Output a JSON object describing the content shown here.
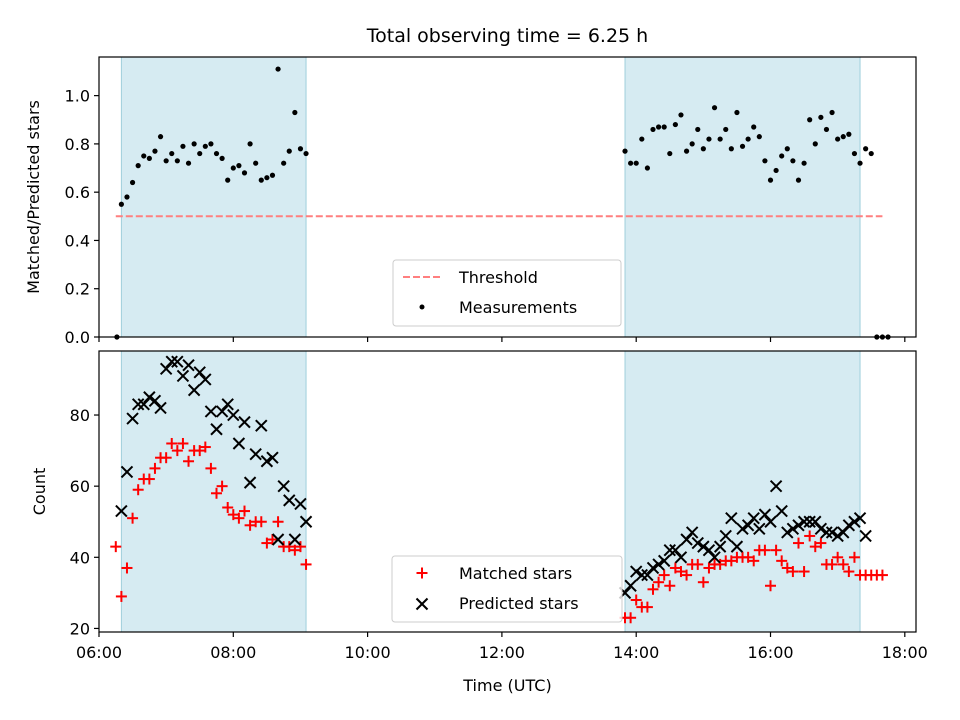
{
  "chart_data": [
    {
      "type": "scatter",
      "title": "Total observing time = 6.25 h",
      "xlabel": "",
      "ylabel": "Matched/Predicted stars",
      "ylim": [
        0,
        1.16
      ],
      "yticks": [
        "0.0",
        "0.2",
        "0.4",
        "0.6",
        "0.8",
        "1.0"
      ],
      "legend_position": "lower-center",
      "shaded_intervals": [
        [
          "06:20",
          "09:05"
        ],
        [
          "13:50",
          "17:20"
        ]
      ],
      "threshold": {
        "name": "Threshold",
        "value": 0.5,
        "x_range": [
          "06:15",
          "17:40"
        ],
        "color": "#ff7f7f"
      },
      "series": [
        {
          "name": "Measurements",
          "color": "#000000",
          "marker": "dot",
          "points": [
            [
              "06:16",
              0.0
            ],
            [
              "06:20",
              0.55
            ],
            [
              "06:25",
              0.58
            ],
            [
              "06:30",
              0.64
            ],
            [
              "06:35",
              0.71
            ],
            [
              "06:40",
              0.75
            ],
            [
              "06:45",
              0.74
            ],
            [
              "06:50",
              0.77
            ],
            [
              "06:55",
              0.83
            ],
            [
              "07:00",
              0.73
            ],
            [
              "07:05",
              0.76
            ],
            [
              "07:10",
              0.73
            ],
            [
              "07:15",
              0.79
            ],
            [
              "07:20",
              0.72
            ],
            [
              "07:25",
              0.8
            ],
            [
              "07:30",
              0.76
            ],
            [
              "07:35",
              0.79
            ],
            [
              "07:40",
              0.8
            ],
            [
              "07:45",
              0.76
            ],
            [
              "07:50",
              0.74
            ],
            [
              "07:55",
              0.65
            ],
            [
              "08:00",
              0.7
            ],
            [
              "08:05",
              0.71
            ],
            [
              "08:10",
              0.68
            ],
            [
              "08:15",
              0.8
            ],
            [
              "08:20",
              0.72
            ],
            [
              "08:25",
              0.65
            ],
            [
              "08:30",
              0.66
            ],
            [
              "08:35",
              0.67
            ],
            [
              "08:40",
              1.11
            ],
            [
              "08:45",
              0.72
            ],
            [
              "08:50",
              0.77
            ],
            [
              "08:55",
              0.93
            ],
            [
              "09:00",
              0.78
            ],
            [
              "09:05",
              0.76
            ],
            [
              "13:50",
              0.77
            ],
            [
              "13:55",
              0.72
            ],
            [
              "14:00",
              0.72
            ],
            [
              "14:05",
              0.82
            ],
            [
              "14:10",
              0.7
            ],
            [
              "14:15",
              0.86
            ],
            [
              "14:20",
              0.87
            ],
            [
              "14:25",
              0.87
            ],
            [
              "14:30",
              0.76
            ],
            [
              "14:35",
              0.88
            ],
            [
              "14:40",
              0.92
            ],
            [
              "14:45",
              0.77
            ],
            [
              "14:50",
              0.8
            ],
            [
              "14:55",
              0.86
            ],
            [
              "15:00",
              0.78
            ],
            [
              "15:05",
              0.82
            ],
            [
              "15:10",
              0.95
            ],
            [
              "15:15",
              0.82
            ],
            [
              "15:20",
              0.86
            ],
            [
              "15:25",
              0.78
            ],
            [
              "15:30",
              0.93
            ],
            [
              "15:35",
              0.79
            ],
            [
              "15:40",
              0.82
            ],
            [
              "15:45",
              0.87
            ],
            [
              "15:50",
              0.83
            ],
            [
              "15:55",
              0.73
            ],
            [
              "16:00",
              0.65
            ],
            [
              "16:05",
              0.69
            ],
            [
              "16:10",
              0.75
            ],
            [
              "16:15",
              0.78
            ],
            [
              "16:20",
              0.73
            ],
            [
              "16:25",
              0.65
            ],
            [
              "16:30",
              0.72
            ],
            [
              "16:35",
              0.9
            ],
            [
              "16:40",
              0.8
            ],
            [
              "16:45",
              0.91
            ],
            [
              "16:50",
              0.86
            ],
            [
              "16:55",
              0.93
            ],
            [
              "17:00",
              0.82
            ],
            [
              "17:05",
              0.83
            ],
            [
              "17:10",
              0.84
            ],
            [
              "17:15",
              0.76
            ],
            [
              "17:20",
              0.72
            ],
            [
              "17:25",
              0.78
            ],
            [
              "17:30",
              0.76
            ],
            [
              "17:35",
              0.0
            ],
            [
              "17:40",
              0.0
            ],
            [
              "17:45",
              0.0
            ]
          ]
        }
      ]
    },
    {
      "type": "scatter",
      "title": "",
      "xlabel": "Time (UTC)",
      "ylabel": "Count",
      "ylim": [
        19,
        98
      ],
      "yticks": [
        "20",
        "40",
        "60",
        "80"
      ],
      "xlim": [
        "06:00",
        "18:10"
      ],
      "xticks": [
        "06:00",
        "08:00",
        "10:00",
        "12:00",
        "14:00",
        "16:00",
        "18:00"
      ],
      "legend_position": "lower-center",
      "shaded_intervals": [
        [
          "06:20",
          "09:05"
        ],
        [
          "13:50",
          "17:20"
        ]
      ],
      "series": [
        {
          "name": "Matched stars",
          "color": "#ff0000",
          "marker": "plus",
          "points": [
            [
              "06:15",
              43
            ],
            [
              "06:20",
              29
            ],
            [
              "06:25",
              37
            ],
            [
              "06:30",
              51
            ],
            [
              "06:35",
              59
            ],
            [
              "06:40",
              62
            ],
            [
              "06:45",
              62
            ],
            [
              "06:50",
              65
            ],
            [
              "06:55",
              68
            ],
            [
              "07:00",
              68
            ],
            [
              "07:05",
              72
            ],
            [
              "07:10",
              70
            ],
            [
              "07:15",
              72
            ],
            [
              "07:20",
              67
            ],
            [
              "07:25",
              70
            ],
            [
              "07:30",
              70
            ],
            [
              "07:35",
              71
            ],
            [
              "07:40",
              65
            ],
            [
              "07:45",
              58
            ],
            [
              "07:50",
              60
            ],
            [
              "07:55",
              54
            ],
            [
              "08:00",
              52
            ],
            [
              "08:05",
              51
            ],
            [
              "08:10",
              53
            ],
            [
              "08:15",
              49
            ],
            [
              "08:20",
              50
            ],
            [
              "08:25",
              50
            ],
            [
              "08:30",
              44
            ],
            [
              "08:35",
              45
            ],
            [
              "08:40",
              50
            ],
            [
              "08:45",
              43
            ],
            [
              "08:50",
              43
            ],
            [
              "08:55",
              42
            ],
            [
              "09:00",
              43
            ],
            [
              "09:05",
              38
            ],
            [
              "13:50",
              23
            ],
            [
              "13:55",
              23
            ],
            [
              "14:00",
              28
            ],
            [
              "14:05",
              26
            ],
            [
              "14:10",
              26
            ],
            [
              "14:15",
              31
            ],
            [
              "14:20",
              33
            ],
            [
              "14:25",
              35
            ],
            [
              "14:30",
              32
            ],
            [
              "14:35",
              37
            ],
            [
              "14:40",
              36
            ],
            [
              "14:45",
              35
            ],
            [
              "14:50",
              38
            ],
            [
              "14:55",
              38
            ],
            [
              "15:00",
              33
            ],
            [
              "15:05",
              37
            ],
            [
              "15:10",
              38
            ],
            [
              "15:15",
              38
            ],
            [
              "15:20",
              39
            ],
            [
              "15:25",
              39
            ],
            [
              "15:30",
              40
            ],
            [
              "15:35",
              40
            ],
            [
              "15:40",
              40
            ],
            [
              "15:45",
              39
            ],
            [
              "15:50",
              42
            ],
            [
              "15:55",
              42
            ],
            [
              "16:00",
              32
            ],
            [
              "16:05",
              42
            ],
            [
              "16:10",
              39
            ],
            [
              "16:15",
              37
            ],
            [
              "16:20",
              36
            ],
            [
              "16:25",
              44
            ],
            [
              "16:30",
              36
            ],
            [
              "16:35",
              46
            ],
            [
              "16:40",
              43
            ],
            [
              "16:45",
              44
            ],
            [
              "16:50",
              38
            ],
            [
              "16:55",
              38
            ],
            [
              "17:00",
              40
            ],
            [
              "17:05",
              38
            ],
            [
              "17:10",
              36
            ],
            [
              "17:15",
              40
            ],
            [
              "17:20",
              35
            ],
            [
              "17:25",
              35
            ],
            [
              "17:30",
              35
            ],
            [
              "17:35",
              35
            ],
            [
              "17:40",
              35
            ]
          ]
        },
        {
          "name": "Predicted stars",
          "color": "#000000",
          "marker": "x",
          "points": [
            [
              "06:20",
              53
            ],
            [
              "06:25",
              64
            ],
            [
              "06:30",
              79
            ],
            [
              "06:35",
              83
            ],
            [
              "06:40",
              83
            ],
            [
              "06:45",
              85
            ],
            [
              "06:50",
              84
            ],
            [
              "06:55",
              82
            ],
            [
              "07:00",
              93
            ],
            [
              "07:05",
              95
            ],
            [
              "07:10",
              95
            ],
            [
              "07:15",
              91
            ],
            [
              "07:20",
              94
            ],
            [
              "07:25",
              87
            ],
            [
              "07:30",
              92
            ],
            [
              "07:35",
              90
            ],
            [
              "07:40",
              81
            ],
            [
              "07:45",
              76
            ],
            [
              "07:50",
              81
            ],
            [
              "07:55",
              83
            ],
            [
              "08:00",
              80
            ],
            [
              "08:05",
              72
            ],
            [
              "08:10",
              78
            ],
            [
              "08:15",
              61
            ],
            [
              "08:20",
              69
            ],
            [
              "08:25",
              77
            ],
            [
              "08:30",
              67
            ],
            [
              "08:35",
              68
            ],
            [
              "08:40",
              45
            ],
            [
              "08:45",
              60
            ],
            [
              "08:50",
              56
            ],
            [
              "08:55",
              45
            ],
            [
              "09:00",
              55
            ],
            [
              "09:05",
              50
            ],
            [
              "13:50",
              30
            ],
            [
              "13:55",
              32
            ],
            [
              "14:00",
              36
            ],
            [
              "14:05",
              35
            ],
            [
              "14:10",
              35
            ],
            [
              "14:15",
              37
            ],
            [
              "14:20",
              38
            ],
            [
              "14:25",
              39
            ],
            [
              "14:30",
              42
            ],
            [
              "14:35",
              42
            ],
            [
              "14:40",
              40
            ],
            [
              "14:45",
              45
            ],
            [
              "14:50",
              47
            ],
            [
              "14:55",
              44
            ],
            [
              "15:00",
              43
            ],
            [
              "15:05",
              42
            ],
            [
              "15:10",
              40
            ],
            [
              "15:15",
              43
            ],
            [
              "15:20",
              46
            ],
            [
              "15:25",
              51
            ],
            [
              "15:30",
              43
            ],
            [
              "15:35",
              48
            ],
            [
              "15:40",
              49
            ],
            [
              "15:45",
              51
            ],
            [
              "15:50",
              48
            ],
            [
              "15:55",
              52
            ],
            [
              "16:00",
              50
            ],
            [
              "16:05",
              60
            ],
            [
              "16:10",
              53
            ],
            [
              "16:15",
              47
            ],
            [
              "16:20",
              48
            ],
            [
              "16:25",
              49
            ],
            [
              "16:30",
              50
            ],
            [
              "16:35",
              50
            ],
            [
              "16:40",
              50
            ],
            [
              "16:45",
              48
            ],
            [
              "16:50",
              47
            ],
            [
              "16:55",
              47
            ],
            [
              "17:00",
              46
            ],
            [
              "17:05",
              47
            ],
            [
              "17:10",
              49
            ],
            [
              "17:15",
              50
            ],
            [
              "17:20",
              51
            ],
            [
              "17:25",
              46
            ]
          ]
        }
      ]
    }
  ]
}
